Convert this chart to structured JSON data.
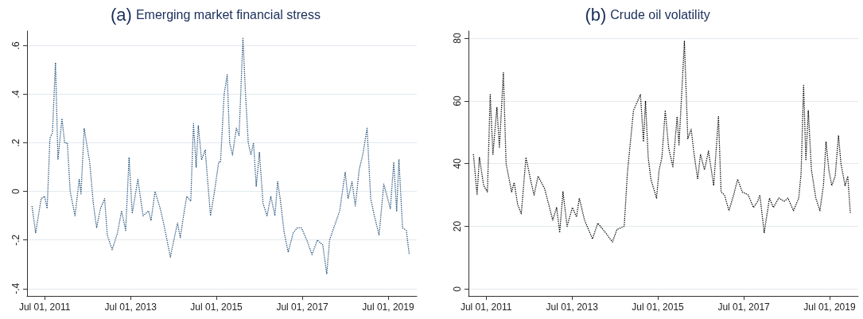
{
  "chart_data": [
    {
      "type": "line",
      "title": "(a) Emerging market financial stress",
      "xlim": [
        "2011-02-01",
        "2020-03-01"
      ],
      "xticks": [
        {
          "value": "2011-07-01",
          "label": "Jul 01, 2011"
        },
        {
          "value": "2013-07-01",
          "label": "Jul 01, 2013"
        },
        {
          "value": "2015-07-01",
          "label": "Jul 01, 2015"
        },
        {
          "value": "2017-07-01",
          "label": "Jul 01, 2017"
        },
        {
          "value": "2019-07-01",
          "label": "Jul 01, 2019"
        }
      ],
      "ylim": [
        -0.43,
        0.66
      ],
      "yticks": [
        {
          "value": -0.4,
          "label": "-.4"
        },
        {
          "value": -0.2,
          "label": "-.2"
        },
        0,
        {
          "value": 0.2,
          "label": ".2"
        },
        {
          "value": 0.4,
          "label": ".4"
        },
        {
          "value": 0.6,
          "label": ".6"
        }
      ],
      "grid": "y",
      "marker": "none",
      "line_style": "dotted",
      "series": [
        {
          "color": "#1f4e79",
          "x": [
            "2011-03-15",
            "2011-04-15",
            "2011-06-01",
            "2011-07-01",
            "2011-07-22",
            "2011-08-15",
            "2011-09-05",
            "2011-10-01",
            "2011-10-22",
            "2011-11-25",
            "2011-12-18",
            "2012-01-10",
            "2012-02-03",
            "2012-03-15",
            "2012-04-20",
            "2012-05-05",
            "2012-06-01",
            "2012-07-18",
            "2012-08-18",
            "2012-09-15",
            "2012-10-18",
            "2012-11-22",
            "2012-12-15",
            "2013-01-25",
            "2013-03-12",
            "2013-04-15",
            "2013-05-20",
            "2013-06-18",
            "2013-07-15",
            "2013-09-01",
            "2013-10-15",
            "2013-12-01",
            "2013-12-22",
            "2014-01-25",
            "2014-03-10",
            "2014-04-12",
            "2014-06-04",
            "2014-08-04",
            "2014-08-28",
            "2014-10-01",
            "2014-10-22",
            "2014-11-25",
            "2014-12-18",
            "2015-01-10",
            "2015-01-28",
            "2015-02-25",
            "2015-03-28",
            "2015-04-20",
            "2015-05-12",
            "2015-06-15",
            "2015-07-20",
            "2015-08-05",
            "2015-09-05",
            "2015-10-01",
            "2015-10-22",
            "2015-11-15",
            "2015-12-18",
            "2016-01-10",
            "2016-02-12",
            "2016-03-05",
            "2016-03-28",
            "2016-04-20",
            "2016-05-12",
            "2016-06-04",
            "2016-07-01",
            "2016-08-01",
            "2016-09-04",
            "2016-10-06",
            "2016-11-10",
            "2016-12-03",
            "2016-12-25",
            "2017-01-28",
            "2017-03-03",
            "2017-04-15",
            "2017-05-20",
            "2017-06-24",
            "2017-08-08",
            "2017-09-22",
            "2017-11-06",
            "2017-12-22",
            "2018-01-25",
            "2018-02-18",
            "2018-04-02",
            "2018-05-15",
            "2018-07-01",
            "2018-07-25",
            "2018-08-28",
            "2018-09-25",
            "2018-10-28",
            "2018-11-27",
            "2019-01-03",
            "2019-02-03",
            "2019-03-06",
            "2019-04-15",
            "2019-05-25",
            "2019-07-20",
            "2019-08-18",
            "2019-09-12",
            "2019-10-01",
            "2019-11-01",
            "2019-12-03",
            "2019-12-28"
          ],
          "values": [
            -0.06,
            -0.17,
            -0.03,
            -0.02,
            -0.07,
            0.22,
            0.24,
            0.53,
            0.13,
            0.3,
            0.2,
            0.2,
            0.0,
            -0.1,
            0.05,
            -0.01,
            0.26,
            0.12,
            -0.05,
            -0.15,
            -0.07,
            -0.03,
            -0.18,
            -0.24,
            -0.17,
            -0.08,
            -0.16,
            0.14,
            -0.09,
            0.05,
            -0.1,
            -0.08,
            -0.12,
            0.0,
            -0.07,
            -0.14,
            -0.27,
            -0.13,
            -0.19,
            -0.08,
            -0.02,
            -0.04,
            0.28,
            0.1,
            0.27,
            0.13,
            0.17,
            0.03,
            -0.1,
            0.0,
            0.12,
            0.12,
            0.4,
            0.48,
            0.2,
            0.15,
            0.26,
            0.23,
            0.63,
            0.4,
            0.2,
            0.15,
            0.2,
            0.02,
            0.16,
            -0.05,
            -0.1,
            -0.02,
            -0.1,
            0.04,
            -0.03,
            -0.17,
            -0.25,
            -0.17,
            -0.15,
            -0.15,
            -0.2,
            -0.26,
            -0.2,
            -0.22,
            -0.34,
            -0.2,
            -0.14,
            -0.08,
            0.08,
            -0.03,
            0.04,
            -0.06,
            0.09,
            0.15,
            0.26,
            -0.03,
            -0.1,
            -0.18,
            0.03,
            -0.07,
            0.12,
            -0.08,
            0.13,
            -0.15,
            -0.16,
            -0.26
          ]
        }
      ]
    },
    {
      "type": "line",
      "title": "(b) Crude oil volatility",
      "xlim": [
        "2011-02-01",
        "2020-03-01"
      ],
      "xticks": [
        {
          "value": "2011-07-01",
          "label": "Jul 01, 2011"
        },
        {
          "value": "2013-07-01",
          "label": "Jul 01, 2013"
        },
        {
          "value": "2015-07-01",
          "label": "Jul 01, 2015"
        },
        {
          "value": "2017-07-01",
          "label": "Jul 01, 2017"
        },
        {
          "value": "2019-07-01",
          "label": "Jul 01, 2019"
        }
      ],
      "ylim": [
        -2.2,
        82.3
      ],
      "yticks": [
        0,
        20,
        40,
        60,
        80
      ],
      "grid": "y",
      "marker": "none",
      "line_style": "dotted",
      "series": [
        {
          "color": "#000000",
          "x": [
            "2011-03-15",
            "2011-04-15",
            "2011-05-05",
            "2011-06-10",
            "2011-07-12",
            "2011-08-05",
            "2011-08-28",
            "2011-10-01",
            "2011-10-22",
            "2011-11-25",
            "2011-12-18",
            "2012-02-03",
            "2012-02-25",
            "2012-03-25",
            "2012-04-25",
            "2012-06-04",
            "2012-07-18",
            "2012-08-12",
            "2012-09-15",
            "2012-11-10",
            "2013-01-18",
            "2013-02-20",
            "2013-03-18",
            "2013-04-15",
            "2013-05-20",
            "2013-07-04",
            "2013-08-08",
            "2013-09-01",
            "2013-10-15",
            "2013-12-22",
            "2014-02-05",
            "2014-04-12",
            "2014-06-10",
            "2014-07-18",
            "2014-09-18",
            "2014-10-15",
            "2014-12-06",
            "2015-02-03",
            "2015-03-01",
            "2015-03-18",
            "2015-04-10",
            "2015-05-03",
            "2015-06-20",
            "2015-07-12",
            "2015-08-05",
            "2015-09-02",
            "2015-10-01",
            "2015-11-06",
            "2015-12-12",
            "2015-12-28",
            "2016-01-28",
            "2016-02-12",
            "2016-03-12",
            "2016-04-10",
            "2016-05-01",
            "2016-06-04",
            "2016-06-28",
            "2016-08-01",
            "2016-09-04",
            "2016-10-18",
            "2016-11-28",
            "2016-12-20",
            "2017-01-18",
            "2017-02-25",
            "2017-04-06",
            "2017-05-10",
            "2017-06-18",
            "2017-08-08",
            "2017-09-22",
            "2017-10-28",
            "2017-11-15",
            "2017-12-22",
            "2018-02-05",
            "2018-03-10",
            "2018-04-25",
            "2018-06-10",
            "2018-07-12",
            "2018-08-28",
            "2018-10-12",
            "2018-11-01",
            "2018-11-22",
            "2018-12-12",
            "2019-01-01",
            "2019-01-28",
            "2019-03-06",
            "2019-04-10",
            "2019-05-10",
            "2019-06-01",
            "2019-06-25",
            "2019-07-20",
            "2019-08-18",
            "2019-09-15",
            "2019-10-06",
            "2019-11-10",
            "2019-12-03",
            "2019-12-25"
          ],
          "values": [
            43,
            30,
            42,
            33,
            31,
            62,
            43,
            58,
            45,
            69,
            40,
            31,
            34,
            27,
            24,
            42,
            34,
            30,
            36,
            32,
            22,
            26,
            18,
            31,
            20,
            26,
            23,
            29,
            22,
            16,
            21,
            18,
            15,
            19,
            20,
            37,
            57,
            62,
            47,
            60,
            42,
            35,
            29,
            38,
            42,
            57,
            45,
            39,
            55,
            46,
            68,
            79,
            48,
            51,
            44,
            35,
            43,
            38,
            44,
            33,
            55,
            31,
            30,
            25,
            30,
            35,
            31,
            30,
            26,
            28,
            30,
            18,
            29,
            26,
            29,
            28,
            29,
            25,
            29,
            37,
            65,
            41,
            57,
            38,
            29,
            25,
            33,
            47,
            38,
            33,
            36,
            49,
            40,
            33,
            36,
            24
          ]
        }
      ]
    }
  ]
}
